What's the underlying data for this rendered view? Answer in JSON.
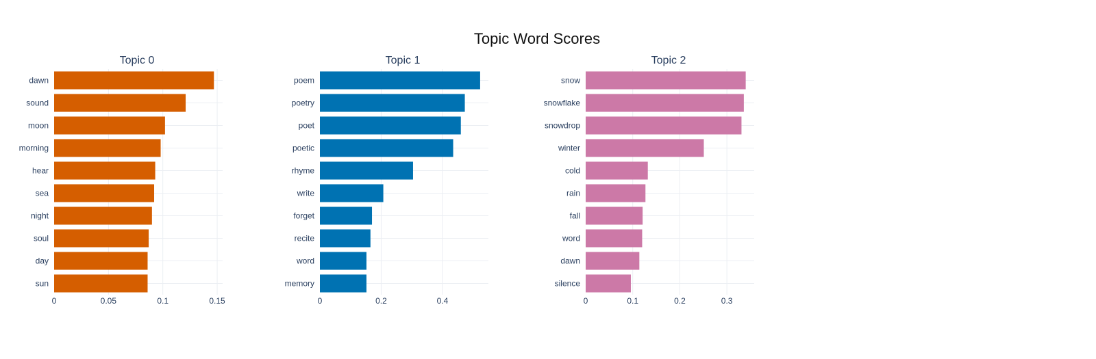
{
  "page": {
    "title": "Topic Word Scores"
  },
  "chart_data": [
    {
      "type": "bar",
      "orientation": "horizontal",
      "title": "Topic 0",
      "categories": [
        "dawn",
        "sound",
        "moon",
        "morning",
        "hear",
        "sea",
        "night",
        "soul",
        "day",
        "sun"
      ],
      "values": [
        0.147,
        0.121,
        0.102,
        0.098,
        0.093,
        0.092,
        0.09,
        0.087,
        0.086,
        0.086
      ],
      "xlim": [
        0,
        0.155
      ],
      "xticks": [
        0,
        0.05,
        0.1,
        0.15
      ],
      "xtick_labels": [
        "0",
        "0.05",
        "0.1",
        "0.15"
      ],
      "color": "#D55E00",
      "grid": true,
      "xlabel": "",
      "ylabel": ""
    },
    {
      "type": "bar",
      "orientation": "horizontal",
      "title": "Topic 1",
      "categories": [
        "poem",
        "poetry",
        "poet",
        "poetic",
        "rhyme",
        "write",
        "forget",
        "recite",
        "word",
        "memory"
      ],
      "values": [
        0.523,
        0.473,
        0.46,
        0.435,
        0.304,
        0.207,
        0.17,
        0.165,
        0.152,
        0.152
      ],
      "xlim": [
        0,
        0.55
      ],
      "xticks": [
        0,
        0.2,
        0.4
      ],
      "xtick_labels": [
        "0",
        "0.2",
        "0.4"
      ],
      "color": "#0072B2",
      "grid": true,
      "xlabel": "",
      "ylabel": ""
    },
    {
      "type": "bar",
      "orientation": "horizontal",
      "title": "Topic 2",
      "categories": [
        "snow",
        "snowflake",
        "snowdrop",
        "winter",
        "cold",
        "rain",
        "fall",
        "word",
        "dawn",
        "silence"
      ],
      "values": [
        0.34,
        0.336,
        0.331,
        0.251,
        0.132,
        0.127,
        0.121,
        0.12,
        0.114,
        0.096
      ],
      "xlim": [
        0,
        0.358
      ],
      "xticks": [
        0,
        0.1,
        0.2,
        0.3
      ],
      "xtick_labels": [
        "0",
        "0.1",
        "0.2",
        "0.3"
      ],
      "color": "#CC79A7",
      "grid": true,
      "xlabel": "",
      "ylabel": ""
    }
  ]
}
